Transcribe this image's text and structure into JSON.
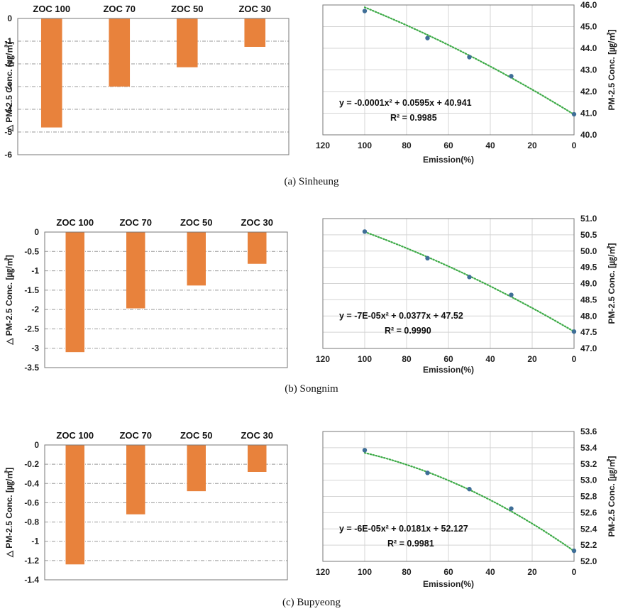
{
  "figure": {
    "colors": {
      "bar": "#E8823C",
      "point": "#3F6E97",
      "trend": "#3DAA47",
      "grid": "#999999",
      "frame": "#777777"
    }
  },
  "chart_data": [
    {
      "caption": "(a) Sinheung",
      "bar": {
        "type": "bar",
        "categories": [
          "ZOC 100",
          "ZOC 70",
          "ZOC 50",
          "ZOC 30"
        ],
        "values": [
          -4.8,
          -3.0,
          -2.15,
          -1.25
        ],
        "ylabel": "△ PM-2.5 Conc. [㎍/㎥]",
        "ylim": [
          -6,
          0
        ],
        "yticks": [
          0,
          -1,
          -2,
          -3,
          -4,
          -5,
          -6
        ],
        "ytick_labels": [
          "0",
          "-1",
          "-2",
          "-3",
          "-4",
          "-5",
          "-6"
        ]
      },
      "scatter": {
        "type": "scatter",
        "x": [
          100,
          70,
          50,
          30,
          0
        ],
        "y": [
          45.72,
          44.47,
          43.59,
          42.71,
          40.95
        ],
        "trendline": {
          "a": -0.0001,
          "b": 0.0595,
          "c": 40.941,
          "style": "dotted"
        },
        "equation": "y = -0.0001x² + 0.0595x + 40.941",
        "r2": "R² = 0.9985",
        "xlabel": "Emission(%)",
        "ylabel": "PM-2.5 Conc. [㎍/㎥]",
        "xlim": [
          0,
          120
        ],
        "x_reversed": true,
        "xticks": [
          120,
          100,
          80,
          60,
          40,
          20,
          0
        ],
        "xtick_labels": [
          "120",
          "100",
          "80",
          "60",
          "40",
          "20",
          "0"
        ],
        "ylim": [
          40,
          46
        ],
        "yticks": [
          40,
          41,
          42,
          43,
          44,
          45,
          46
        ],
        "ytick_labels": [
          "40.0",
          "41.0",
          "42.0",
          "43.0",
          "44.0",
          "45.0",
          "46.0"
        ]
      }
    },
    {
      "caption": "(b) Songnim",
      "bar": {
        "type": "bar",
        "categories": [
          "ZOC 100",
          "ZOC 70",
          "ZOC 50",
          "ZOC 30"
        ],
        "values": [
          -3.1,
          -1.97,
          -1.38,
          -0.82
        ],
        "ylabel": "△ PM-2.5 Conc. [㎍/㎥]",
        "ylim": [
          -3.5,
          0
        ],
        "yticks": [
          0,
          -0.5,
          -1,
          -1.5,
          -2,
          -2.5,
          -3,
          -3.5
        ],
        "ytick_labels": [
          "0",
          "-0.5",
          "-1",
          "-1.5",
          "-2",
          "-2.5",
          "-3",
          "-3.5"
        ]
      },
      "scatter": {
        "type": "scatter",
        "x": [
          100,
          70,
          50,
          30,
          0
        ],
        "y": [
          50.6,
          49.78,
          49.2,
          48.65,
          47.52
        ],
        "trendline": {
          "a": -7e-05,
          "b": 0.0377,
          "c": 47.52,
          "style": "dotted"
        },
        "equation": "y = -7E-05x² + 0.0377x + 47.52",
        "r2": "R² = 0.9990",
        "xlabel": "Emission(%)",
        "ylabel": "PM-2.5 Conc. [㎍/㎥]",
        "xlim": [
          0,
          120
        ],
        "x_reversed": true,
        "xticks": [
          120,
          100,
          80,
          60,
          40,
          20,
          0
        ],
        "xtick_labels": [
          "120",
          "100",
          "80",
          "60",
          "40",
          "20",
          "0"
        ],
        "ylim": [
          47,
          51
        ],
        "yticks": [
          47,
          47.5,
          48,
          48.5,
          49,
          49.5,
          50,
          50.5,
          51
        ],
        "ytick_labels": [
          "47.0",
          "47.5",
          "48.0",
          "48.5",
          "49.0",
          "49.5",
          "50.0",
          "50.5",
          "51.0"
        ]
      }
    },
    {
      "caption": "(c) Bupyeong",
      "bar": {
        "type": "bar",
        "categories": [
          "ZOC 100",
          "ZOC 70",
          "ZOC 50",
          "ZOC 30"
        ],
        "values": [
          -1.24,
          -0.72,
          -0.48,
          -0.28
        ],
        "ylabel": "△ PM-2.5 Conc. [㎍/㎥]",
        "ylim": [
          -1.4,
          0
        ],
        "yticks": [
          0,
          -0.2,
          -0.4,
          -0.6,
          -0.8,
          -1,
          -1.2,
          -1.4
        ],
        "ytick_labels": [
          "0",
          "-0.2",
          "-0.4",
          "-0.6",
          "-0.8",
          "-1",
          "-1.2",
          "-1.4"
        ]
      },
      "scatter": {
        "type": "scatter",
        "x": [
          100,
          70,
          50,
          30,
          0
        ],
        "y": [
          53.37,
          53.09,
          52.89,
          52.65,
          52.13
        ],
        "trendline": {
          "a": -6e-05,
          "b": 0.0181,
          "c": 52.127,
          "style": "dotted"
        },
        "equation": "y = -6E-05x² + 0.0181x + 52.127",
        "r2": "R² = 0.9981",
        "xlabel": "Emission(%)",
        "ylabel": "PM-2.5 Conc. [㎍/㎥]",
        "xlim": [
          0,
          120
        ],
        "x_reversed": true,
        "xticks": [
          120,
          100,
          80,
          60,
          40,
          20,
          0
        ],
        "xtick_labels": [
          "120",
          "100",
          "80",
          "60",
          "40",
          "20",
          "0"
        ],
        "ylim": [
          52,
          53.6
        ],
        "yticks": [
          52,
          52.2,
          52.4,
          52.6,
          52.8,
          53,
          53.2,
          53.4,
          53.6
        ],
        "ytick_labels": [
          "52.0",
          "52.2",
          "52.4",
          "52.6",
          "52.8",
          "53.0",
          "53.2",
          "53.4",
          "53.6"
        ]
      }
    }
  ]
}
